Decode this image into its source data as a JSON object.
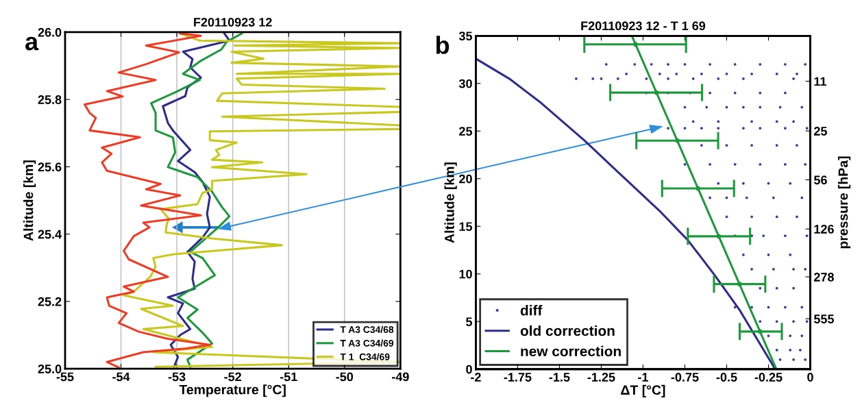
{
  "chart_data": [
    {
      "type": "line",
      "title": "F20110923 12",
      "xlabel": "Temperature [°C]",
      "ylabel": "Altitude [km]",
      "xlim": [
        -55,
        -49
      ],
      "xticks": [
        -55,
        -54,
        -53,
        -52,
        -51,
        -50,
        -49
      ],
      "ylim": [
        25.0,
        26.0
      ],
      "yticks": [
        {
          "value": 25.0,
          "label": "25.0"
        },
        25.2,
        25.4,
        25.6,
        25.8,
        {
          "value": 26.0,
          "label": "26.0"
        }
      ],
      "grid": "x",
      "legend": "bottom right",
      "annotations": [
        "a"
      ],
      "series": [
        {
          "name": "T A3 C34/68",
          "color": "#2e2b8f",
          "x": [
            -52.15,
            -52.06,
            -52.89,
            -52.72,
            -52.76,
            -52.57,
            -52.81,
            -52.85,
            -53.25,
            -53.16,
            -53.07,
            -52.76,
            -52.98,
            -52.68,
            -52.54,
            -52.41,
            -52.46,
            -52.41,
            -52.54,
            -52.81,
            -52.68,
            -52.72,
            -52.68,
            -53.16,
            -52.89,
            -52.98,
            -52.76,
            -52.94,
            -53.11,
            -52.98,
            -53.05
          ],
          "values": [
            25.996,
            25.975,
            25.942,
            25.92,
            25.895,
            25.865,
            25.836,
            25.81,
            25.78,
            25.73,
            25.708,
            25.65,
            25.617,
            25.584,
            25.555,
            25.511,
            25.46,
            25.42,
            25.39,
            25.347,
            25.318,
            25.267,
            25.238,
            25.212,
            25.194,
            25.165,
            25.118,
            25.1,
            25.071,
            25.035,
            25.006
          ]
        },
        {
          "name": "T A3 C34/69",
          "color": "#1a9a3a",
          "x": [
            -51.84,
            -52.11,
            -52.2,
            -52.59,
            -52.89,
            -52.59,
            -52.98,
            -53.46,
            -53.38,
            -53.38,
            -53.07,
            -53.03,
            -53.16,
            -52.63,
            -52.37,
            -52.2,
            -52.06,
            -52.26,
            -52.41,
            -52.76,
            -52.54,
            -52.32,
            -52.68,
            -52.98,
            -52.63,
            -52.81,
            -52.54,
            -52.37,
            -52.81,
            -52.76
          ],
          "values": [
            25.996,
            25.971,
            25.949,
            25.913,
            25.876,
            25.858,
            25.825,
            25.789,
            25.76,
            25.708,
            25.687,
            25.643,
            25.599,
            25.569,
            25.526,
            25.482,
            25.453,
            25.42,
            25.398,
            25.347,
            25.329,
            25.278,
            25.242,
            25.212,
            25.176,
            25.151,
            25.107,
            25.075,
            25.027,
            25.006
          ]
        },
        {
          "name": "T 1  C34/69",
          "color": "#c8c81e",
          "x": [
            -52.94,
            -52.59,
            -49.0,
            -51.97,
            -49.0,
            -52.02,
            -51.45,
            -52.02,
            -49.0,
            -51.93,
            -49.0,
            -51.93,
            -51.84,
            -49.28,
            -52.19,
            -52.28,
            -49.0,
            -49.0,
            -52.19,
            -49.0,
            -49.0,
            -52.41,
            -52.41,
            -51.93,
            -52.3,
            -52.24,
            -52.37,
            -51.47,
            -52.37,
            -50.68,
            -52.37,
            -52.37,
            -52.54,
            -52.63,
            -53.29,
            -53.14,
            -53.18,
            -53.2,
            -52.37,
            -51.12,
            -53.07,
            -53.42,
            -53.38,
            -53.47,
            -53.77,
            -53.95,
            -53.07,
            -53.64,
            -52.89,
            -53.6,
            -52.37,
            -53.42,
            -49.0,
            -53.38
          ],
          "values": [
            25.996,
            25.975,
            25.967,
            25.96,
            25.953,
            25.942,
            25.921,
            25.909,
            25.898,
            25.876,
            25.876,
            25.862,
            25.844,
            25.832,
            25.818,
            25.796,
            25.778,
            25.763,
            25.749,
            25.723,
            25.712,
            25.705,
            25.679,
            25.672,
            25.65,
            25.635,
            25.621,
            25.613,
            25.599,
            25.578,
            25.558,
            25.533,
            25.522,
            25.489,
            25.474,
            25.445,
            25.43,
            25.405,
            25.387,
            25.367,
            25.34,
            25.329,
            25.303,
            25.274,
            25.229,
            25.218,
            25.187,
            25.178,
            25.127,
            25.118,
            25.065,
            25.049,
            25.02,
            25.006
          ]
        },
        {
          "color": "#ee3b24",
          "x": [
            -52.94,
            -52.57,
            -53.55,
            -52.96,
            -53.55,
            -54.04,
            -53.38,
            -54.25,
            -53.97,
            -54.65,
            -54.56,
            -54.45,
            -54.56,
            -53.66,
            -54.34,
            -54.17,
            -54.34,
            -54.25,
            -53.29,
            -53.55,
            -52.94,
            -53.64,
            -52.57,
            -53.6,
            -53.49,
            -53.77,
            -53.95,
            -53.86,
            -53.16,
            -53.95,
            -53.77,
            -54.25,
            -54.21,
            -53.9,
            -54.04,
            -53.68,
            -53.16,
            -52.41,
            -52.85,
            -53.6,
            -54.25,
            -54.04
          ],
          "values": [
            25.996,
            25.989,
            25.96,
            25.94,
            25.905,
            25.88,
            25.858,
            25.825,
            25.809,
            25.785,
            25.76,
            25.745,
            25.708,
            25.688,
            25.657,
            25.639,
            25.613,
            25.588,
            25.549,
            25.533,
            25.515,
            25.485,
            25.456,
            25.434,
            25.42,
            25.394,
            25.35,
            25.325,
            25.273,
            25.244,
            25.229,
            25.212,
            25.187,
            25.165,
            25.136,
            25.11,
            25.089,
            25.071,
            25.06,
            25.049,
            25.02,
            25.004
          ]
        }
      ]
    },
    {
      "type": "line",
      "title": "F20110923 12 - T 1 69",
      "xlabel": "ΔT [°C]",
      "ylabel": "Altitude [km]",
      "y2label": "pressure [hPa]",
      "xlim": [
        -2,
        0
      ],
      "xticks": [
        -2,
        -1.75,
        -1.5,
        -1.25,
        -1,
        -0.75,
        -0.5,
        -0.25,
        0
      ],
      "ylim": [
        0,
        35
      ],
      "yticks": [
        0,
        5,
        10,
        15,
        20,
        25,
        30,
        35
      ],
      "y2lim": [
        1275,
        5.2
      ],
      "y2ticks": [
        555,
        278,
        126,
        56,
        25,
        11
      ],
      "log": "y2",
      "grid": false,
      "legend": "bottom left",
      "annotations": [
        "b"
      ],
      "series": [
        {
          "name": "diff",
          "type": "scatter",
          "marker": "circle",
          "color": "#3b3ba0",
          "x": [
            -1.22,
            -1.05,
            -0.95,
            -0.85,
            -0.75,
            -0.6,
            -0.45,
            -0.3,
            -0.15,
            -0.03,
            -1.1,
            -0.9,
            -0.8,
            -0.65,
            -0.5,
            -0.35,
            -0.2,
            -0.08,
            -1.4,
            -1.3,
            -1.25,
            -1.15,
            -0.98,
            -0.85,
            -0.7,
            -0.55,
            -0.4,
            -0.1,
            -0.98,
            -0.85,
            -0.72,
            -0.6,
            -0.45,
            -0.3,
            -0.15,
            -0.75,
            -0.62,
            -0.5,
            -0.4,
            -0.3,
            -0.18,
            -0.05,
            -0.7,
            -0.55,
            -0.35,
            -0.2,
            -0.1,
            -0.85,
            -0.75,
            -0.65,
            -0.55,
            -0.4,
            -0.3,
            -0.15,
            -0.02,
            -0.65,
            -0.5,
            -0.35,
            -0.2,
            -0.08,
            -0.75,
            -0.6,
            -0.45,
            -0.3,
            -0.15,
            -0.03,
            -0.55,
            -0.4,
            -0.25,
            -0.12,
            -0.6,
            -0.5,
            -0.38,
            -0.22,
            -0.05,
            -0.5,
            -0.35,
            -0.2,
            -0.08,
            -0.45,
            -0.35,
            -0.28,
            -0.15,
            -0.02,
            -0.4,
            -0.25,
            -0.12,
            -0.35,
            -0.22,
            -0.1,
            -0.03,
            -0.3,
            -0.2,
            -0.1,
            -0.45,
            -0.35,
            -0.25,
            -0.15,
            -0.05,
            -0.3,
            -0.2,
            -0.1,
            -0.02,
            -0.25,
            -0.12,
            -0.05,
            -0.2,
            -0.12,
            -0.06,
            -0.18,
            -0.1,
            -0.03
          ],
          "values": [
            32,
            32,
            32,
            32,
            32,
            32,
            32,
            32,
            32,
            32,
            31,
            31,
            31,
            31,
            31,
            31,
            31,
            31,
            30.5,
            30.5,
            30.5,
            30.5,
            30.5,
            30.5,
            30.5,
            30.5,
            30.5,
            30.5,
            29,
            29,
            29,
            29,
            29,
            29,
            29,
            27.5,
            27.5,
            27.5,
            27.5,
            27.5,
            27.5,
            27.5,
            26,
            26,
            26,
            26,
            26,
            25.3,
            25.3,
            25.3,
            25.3,
            25.3,
            25.3,
            25.3,
            25.3,
            23.5,
            23.5,
            23.5,
            23.5,
            23.5,
            21.5,
            21.5,
            21.5,
            21.5,
            21.5,
            21.5,
            19.5,
            19.5,
            19.5,
            19.5,
            18,
            18,
            18,
            18,
            18,
            16,
            16,
            16,
            16,
            14,
            14,
            14,
            14,
            14,
            12,
            12,
            12,
            10.5,
            10.5,
            10.5,
            10.5,
            8.5,
            8.5,
            8.5,
            6.5,
            6.5,
            6.5,
            6.5,
            6.5,
            5,
            5,
            5,
            5,
            3.5,
            3.5,
            3.5,
            2,
            2,
            2,
            1,
            1,
            1
          ]
        },
        {
          "name": "old correction",
          "type": "line",
          "color": "#2e2b8f",
          "x": [
            -2,
            -1.8,
            -1.62,
            -1.35,
            -1.12,
            -0.9,
            -0.73,
            -0.57,
            -0.42,
            -0.21
          ],
          "values": [
            32.6,
            30.5,
            28.1,
            24.0,
            20.2,
            16.6,
            13.5,
            9.83,
            6.14,
            0
          ]
        },
        {
          "name": "new correction",
          "type": "line",
          "color": "#1a9a3a",
          "x": [
            -1.067,
            -0.203
          ],
          "values": [
            35,
            0
          ]
        },
        {
          "type": "scatter",
          "marker": "circle",
          "color": "#1a9a3a",
          "x": [
            -1.045,
            -0.92,
            -0.795,
            -0.671,
            -0.547,
            -0.423,
            -0.3
          ],
          "values": [
            34.1,
            29.04,
            24.0,
            18.97,
            13.95,
            8.93,
            3.95
          ],
          "xerrors": [
            [
              -1.351,
              -0.743
            ],
            [
              -1.196,
              -0.647
            ],
            [
              -1.04,
              -0.551
            ],
            [
              -0.886,
              -0.456
            ],
            [
              -0.732,
              -0.36
            ],
            [
              -0.576,
              -0.269
            ],
            [
              -0.422,
              -0.17
            ]
          ]
        }
      ]
    }
  ]
}
